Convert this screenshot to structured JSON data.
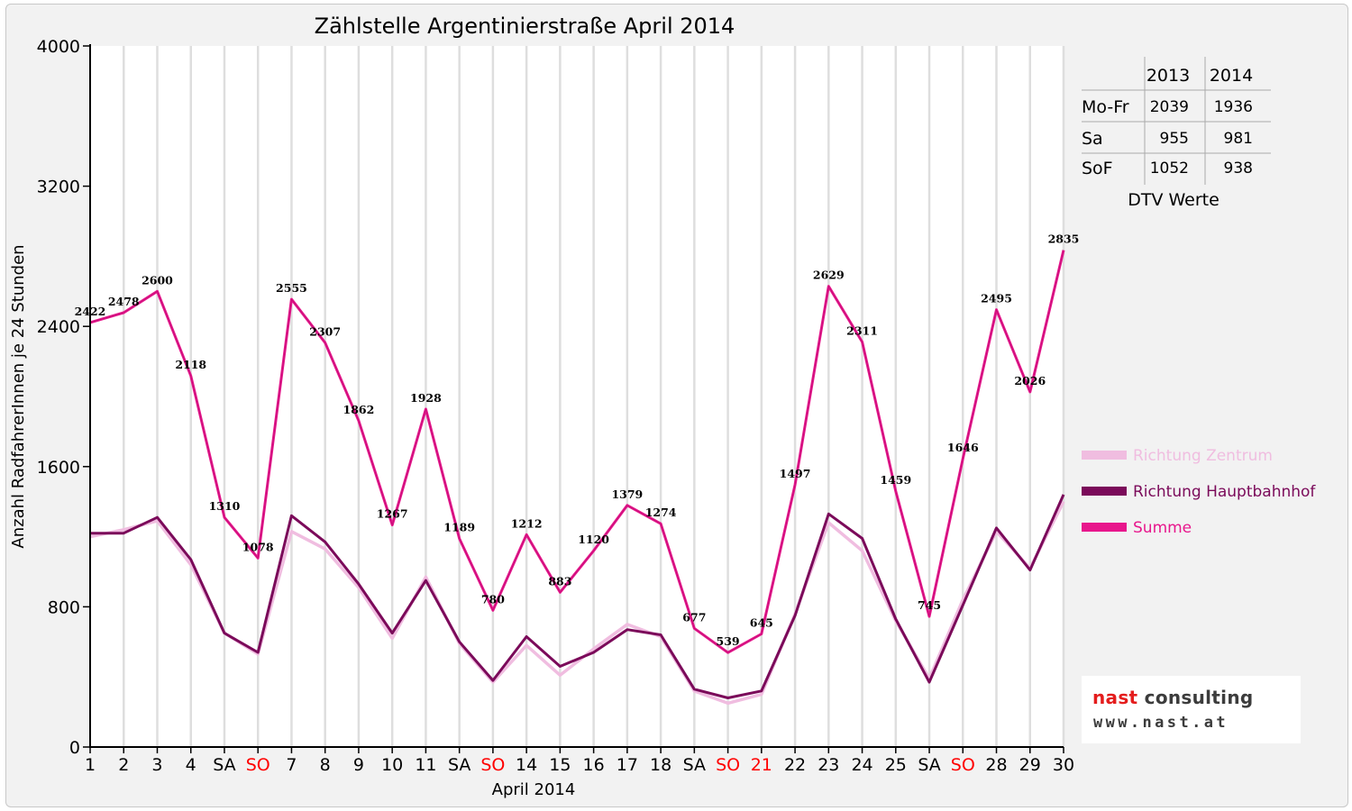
{
  "chart_data": {
    "type": "line",
    "title": "Zählstelle Argentinierstraße April 2014",
    "xlabel": "April 2014",
    "ylabel": "Anzahl RadfahrerInnen je 24 Stunden",
    "ylim": [
      0,
      4000
    ],
    "yticks": [
      "0",
      "800",
      "1600",
      "2400",
      "3200",
      "4000"
    ],
    "categories": [
      "1",
      "2",
      "3",
      "4",
      "SA",
      "SO",
      "7",
      "8",
      "9",
      "10",
      "11",
      "SA",
      "SO",
      "14",
      "15",
      "16",
      "17",
      "18",
      "SA",
      "SO",
      "21",
      "22",
      "23",
      "24",
      "25",
      "SA",
      "SO",
      "28",
      "29",
      "30"
    ],
    "red_categories": [
      5,
      12,
      19,
      20,
      26
    ],
    "grid": "vertical",
    "legend_position": "right",
    "series": [
      {
        "name": "Richtung Zentrum",
        "color": "#f0bde0",
        "values": [
          1200,
          1240,
          1290,
          1040,
          650,
          530,
          1230,
          1130,
          910,
          620,
          970,
          590,
          370,
          580,
          410,
          560,
          700,
          630,
          320,
          250,
          300,
          760,
          1280,
          1120,
          720,
          390,
          840,
          1230,
          1020,
          1400
        ]
      },
      {
        "name": "Richtung Hauptbahnhof",
        "color": "#7b0a5a",
        "values": [
          1220,
          1220,
          1310,
          1070,
          650,
          540,
          1320,
          1170,
          930,
          650,
          950,
          600,
          380,
          630,
          460,
          540,
          670,
          640,
          330,
          280,
          320,
          750,
          1330,
          1190,
          730,
          370,
          810,
          1250,
          1010,
          1440
        ]
      },
      {
        "name": "Summe",
        "color": "#e8168c",
        "values": [
          2422,
          2478,
          2600,
          2118,
          1310,
          1078,
          2555,
          2307,
          1862,
          1267,
          1928,
          1189,
          780,
          1212,
          883,
          1120,
          1379,
          1274,
          677,
          539,
          645,
          1497,
          2629,
          2311,
          1459,
          745,
          1646,
          2495,
          2026,
          2835
        ]
      }
    ]
  },
  "dtv_table": {
    "title": "DTV Werte",
    "columns": [
      "",
      "2013",
      "2014"
    ],
    "rows": [
      {
        "label": "Mo-Fr",
        "v2013": "2039",
        "v2014": "1936"
      },
      {
        "label": "Sa",
        "v2013": "955",
        "v2014": "981"
      },
      {
        "label": "SoF",
        "v2013": "1052",
        "v2014": "938"
      }
    ]
  },
  "logo": {
    "part1": "nast",
    "part2": " consulting",
    "url": "www.nast.at"
  }
}
